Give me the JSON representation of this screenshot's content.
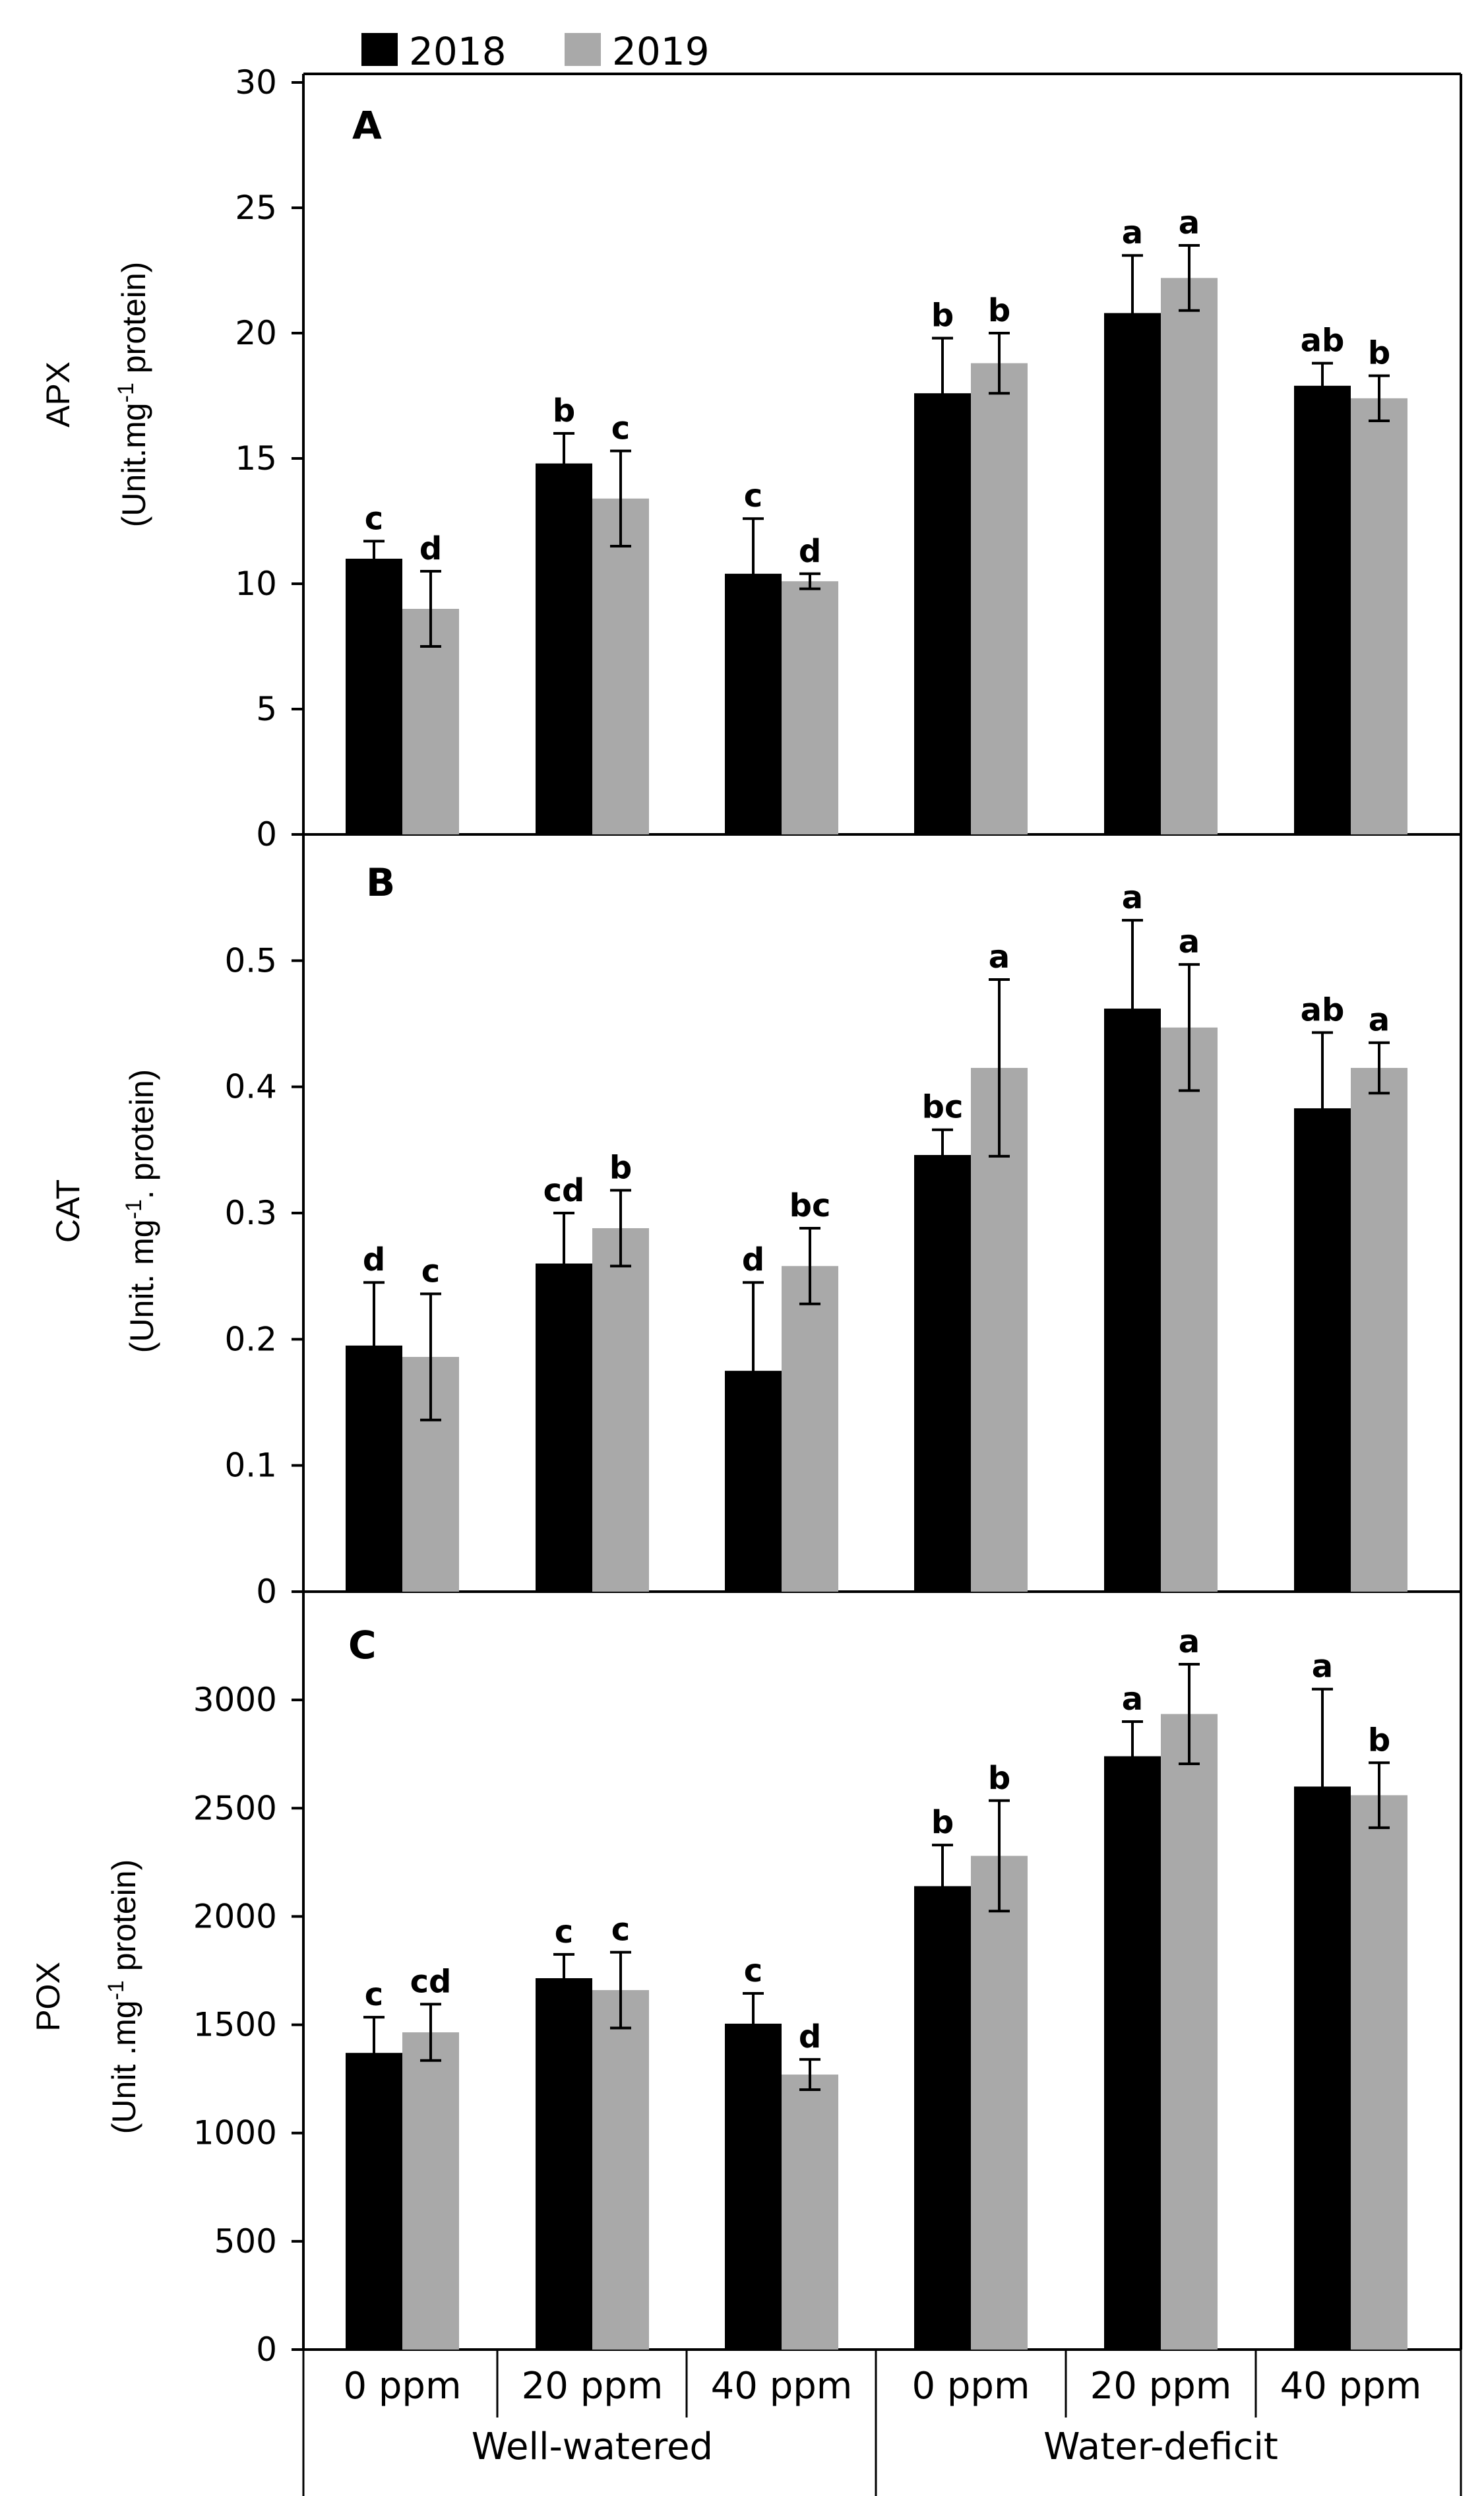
{
  "legend": [
    {
      "name": "2018",
      "color": "#000000"
    },
    {
      "name": "2019",
      "color": "#a9a9a9"
    }
  ],
  "x_axis": {
    "categories": [
      "0 ppm",
      "20 ppm",
      "40 ppm",
      "0 ppm",
      "20 ppm",
      "40 ppm"
    ],
    "groups": [
      "Well-watered",
      "Water-deficit"
    ]
  },
  "chart_data": [
    {
      "type": "bar",
      "panel": "A",
      "ylabel": "APX",
      "yunit_prefix": "(Unit.mg",
      "yunit_sup": "-1",
      "yunit_suffix": " protein)",
      "ylim": [
        0,
        30
      ],
      "yticks": [
        0,
        5,
        10,
        15,
        20,
        25,
        30
      ],
      "ytick_labels": [
        "0",
        "5",
        "10",
        "15",
        "20",
        "25",
        "30"
      ],
      "categories": [
        "0 ppm",
        "20 ppm",
        "40 ppm",
        "0 ppm",
        "20 ppm",
        "40 ppm"
      ],
      "series": [
        {
          "name": "2018",
          "values": [
            11.0,
            14.8,
            10.4,
            17.6,
            20.8,
            17.9
          ],
          "errors": [
            0.7,
            1.2,
            2.2,
            2.2,
            2.3,
            0.9
          ],
          "letters": [
            "c",
            "b",
            "c",
            "b",
            "a",
            "ab"
          ]
        },
        {
          "name": "2019",
          "values": [
            9.0,
            13.4,
            10.1,
            18.8,
            22.2,
            17.4
          ],
          "errors": [
            1.5,
            1.9,
            0.3,
            1.2,
            1.3,
            0.9
          ],
          "letters": [
            "d",
            "c",
            "d",
            "b",
            "a",
            "b"
          ]
        }
      ]
    },
    {
      "type": "bar",
      "panel": "B",
      "ylabel": "CAT",
      "yunit_prefix": "(Unit. mg",
      "yunit_sup": "-1",
      "yunit_suffix": ". protein)",
      "ylim": [
        0,
        0.6
      ],
      "yticks": [
        0,
        0.1,
        0.2,
        0.3,
        0.4,
        0.5
      ],
      "ytick_labels": [
        "0",
        "0.1",
        "0.2",
        "0.3",
        "0.4",
        "0.5"
      ],
      "categories": [
        "0 ppm",
        "20 ppm",
        "40 ppm",
        "0 ppm",
        "20 ppm",
        "40 ppm"
      ],
      "series": [
        {
          "name": "2018",
          "values": [
            0.195,
            0.26,
            0.175,
            0.346,
            0.462,
            0.383
          ],
          "errors": [
            0.05,
            0.04,
            0.07,
            0.02,
            0.07,
            0.06
          ],
          "letters": [
            "d",
            "cd",
            "d",
            "bc",
            "a",
            "ab"
          ]
        },
        {
          "name": "2019",
          "values": [
            0.186,
            0.288,
            0.258,
            0.415,
            0.447,
            0.415
          ],
          "errors": [
            0.05,
            0.03,
            0.03,
            0.07,
            0.05,
            0.02
          ],
          "letters": [
            "c",
            "b",
            "bc",
            "a",
            "a",
            "a"
          ]
        }
      ]
    },
    {
      "type": "bar",
      "panel": "C",
      "ylabel": "POX",
      "yunit_prefix": "(Unit .mg",
      "yunit_sup": "-1",
      "yunit_suffix": " protein)",
      "ylim": [
        0,
        3500
      ],
      "yticks": [
        0,
        500,
        1000,
        1500,
        2000,
        2500,
        3000
      ],
      "ytick_labels": [
        "0",
        "500",
        "1000",
        "1500",
        "2000",
        "2500",
        "3000"
      ],
      "categories": [
        "0 ppm",
        "20 ppm",
        "40 ppm",
        "0 ppm",
        "20 ppm",
        "40 ppm"
      ],
      "series": [
        {
          "name": "2018",
          "values": [
            1370,
            1715,
            1505,
            2140,
            2740,
            2600
          ],
          "errors": [
            165,
            110,
            140,
            190,
            160,
            450
          ],
          "letters": [
            "c",
            "c",
            "c",
            "b",
            "a",
            "a"
          ]
        },
        {
          "name": "2019",
          "values": [
            1465,
            1660,
            1270,
            2280,
            2935,
            2560
          ],
          "errors": [
            130,
            175,
            70,
            255,
            230,
            150
          ],
          "letters": [
            "cd",
            "c",
            "d",
            "b",
            "a",
            "b"
          ]
        }
      ]
    }
  ]
}
